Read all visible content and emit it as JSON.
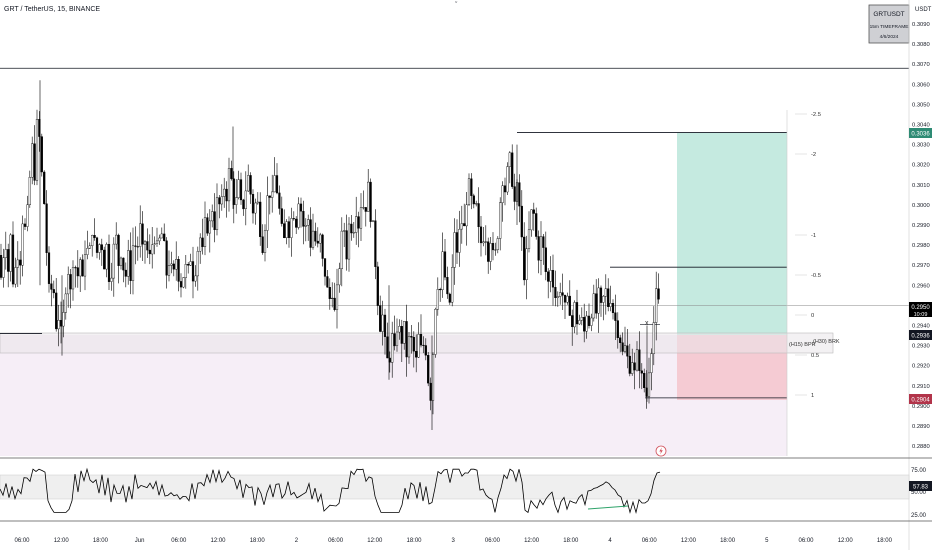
{
  "header": {
    "symbol_title": "GRT / TetherUS, 15, BINANCE"
  },
  "watermark_box": {
    "line1": "GRTUSDT",
    "line2": "15m TIMEFRAME",
    "line3": "4/6/2024"
  },
  "price_axis": {
    "currency": "USDT",
    "ticks": [
      "0.3090",
      "0.3080",
      "0.3070",
      "0.3060",
      "0.3050",
      "0.3040",
      "0.3030",
      "0.3020",
      "0.3010",
      "0.3000",
      "0.2990",
      "0.2980",
      "0.2970",
      "0.2960",
      "0.2950",
      "0.2940",
      "0.2930",
      "0.2920",
      "0.2910",
      "0.2900",
      "0.2890",
      "0.2880"
    ],
    "last_price": {
      "value": "0.2950",
      "countdown": "10:09",
      "color": "#000000"
    },
    "target_label": {
      "value": "0.3036",
      "color": "#2e8b74"
    },
    "entry_label": {
      "value": "0.2936",
      "color": "#131722"
    },
    "stop_label": {
      "value": "0.2904",
      "color": "#b2344a"
    },
    "rsi_ticks": [
      "75.00",
      "50.00",
      "25.00"
    ],
    "rsi_value": {
      "value": "57.83",
      "color": "#131722"
    }
  },
  "time_axis": {
    "labels": [
      "06:00",
      "12:00",
      "18:00",
      "Jun",
      "06:00",
      "12:00",
      "18:00",
      "2",
      "06:00",
      "12:00",
      "18:00",
      "3",
      "06:00",
      "12:00",
      "18:00",
      "4",
      "06:00",
      "12:00",
      "18:00",
      "5",
      "06:00",
      "12:00",
      "18:00"
    ]
  },
  "fib_labels": [
    "-2.5",
    "-2",
    "-1",
    "-0.5",
    "0",
    "0.5",
    "1"
  ],
  "annotations": {
    "x_mark": "x",
    "bpr_label": "(H15) BPR",
    "brk_label": "(H30) BRK"
  },
  "colors": {
    "up_candle": "#000000",
    "down_candle": "#000000",
    "target_zone": "#b2e3d5",
    "stop_zone": "#f5c4cd",
    "pink_zone": "#f6eef7",
    "rsi_band": "#efefef",
    "rsi_line": "#000000",
    "rsi_divergence": "#2ea36a"
  },
  "chart_data": {
    "type": "candlestick",
    "interval": "15m",
    "ylim": [
      0.2875,
      0.31
    ],
    "price_path": [
      [
        0,
        0.2975
      ],
      [
        3,
        0.296
      ],
      [
        6,
        0.299
      ],
      [
        9,
        0.2965
      ],
      [
        12,
        0.2985
      ],
      [
        15,
        0.2955
      ],
      [
        18,
        0.298
      ],
      [
        21,
        0.297
      ],
      [
        24,
        0.2995
      ],
      [
        27,
        0.2985
      ],
      [
        30,
        0.3005
      ],
      [
        33,
        0.303
      ],
      [
        36,
        0.3015
      ],
      [
        39,
        0.3048
      ],
      [
        42,
        0.302
      ],
      [
        45,
        0.3005
      ],
      [
        48,
        0.2975
      ],
      [
        51,
        0.295
      ],
      [
        54,
        0.2965
      ],
      [
        57,
        0.294
      ],
      [
        60,
        0.2945
      ],
      [
        63,
        0.2932
      ],
      [
        66,
        0.2955
      ],
      [
        69,
        0.297
      ],
      [
        72,
        0.2955
      ],
      [
        75,
        0.298
      ],
      [
        78,
        0.296
      ],
      [
        81,
        0.2975
      ],
      [
        84,
        0.296
      ],
      [
        87,
        0.2985
      ],
      [
        90,
        0.297
      ],
      [
        93,
        0.299
      ],
      [
        96,
        0.298
      ],
      [
        99,
        0.2975
      ],
      [
        102,
        0.2985
      ],
      [
        105,
        0.297
      ],
      [
        108,
        0.298
      ],
      [
        111,
        0.296
      ],
      [
        114,
        0.2975
      ],
      [
        117,
        0.2985
      ],
      [
        120,
        0.297
      ],
      [
        123,
        0.298
      ],
      [
        126,
        0.296
      ],
      [
        129,
        0.2975
      ],
      [
        132,
        0.2965
      ],
      [
        135,
        0.2985
      ],
      [
        138,
        0.2975
      ],
      [
        141,
        0.299
      ],
      [
        144,
        0.2975
      ],
      [
        147,
        0.2985
      ],
      [
        150,
        0.297
      ],
      [
        153,
        0.298
      ],
      [
        156,
        0.2985
      ],
      [
        159,
        0.2975
      ],
      [
        162,
        0.2988
      ],
      [
        165,
        0.298
      ],
      [
        168,
        0.2965
      ],
      [
        171,
        0.2975
      ],
      [
        174,
        0.296
      ],
      [
        177,
        0.2975
      ],
      [
        180,
        0.2965
      ],
      [
        183,
        0.296
      ],
      [
        186,
        0.297
      ],
      [
        189,
        0.2965
      ],
      [
        192,
        0.2975
      ],
      [
        195,
        0.2962
      ],
      [
        198,
        0.2975
      ],
      [
        201,
        0.2985
      ],
      [
        204,
        0.2975
      ],
      [
        207,
        0.2995
      ],
      [
        210,
        0.2985
      ],
      [
        213,
        0.3
      ],
      [
        216,
        0.299
      ],
      [
        219,
        0.3005
      ],
      [
        222,
        0.2995
      ],
      [
        225,
        0.301
      ],
      [
        228,
        0.3005
      ],
      [
        231,
        0.302
      ],
      [
        234,
        0.3005
      ],
      [
        237,
        0.3
      ],
      [
        240,
        0.301
      ],
      [
        243,
        0.2995
      ],
      [
        246,
        0.3005
      ],
      [
        249,
        0.3015
      ],
      [
        252,
        0.3005
      ],
      [
        255,
        0.2995
      ],
      [
        258,
        0.3005
      ],
      [
        261,
        0.299
      ],
      [
        264,
        0.298
      ],
      [
        267,
        0.2995
      ],
      [
        270,
        0.301
      ],
      [
        273,
        0.3
      ],
      [
        276,
        0.3015
      ],
      [
        279,
        0.3005
      ],
      [
        282,
        0.299
      ],
      [
        285,
        0.298
      ],
      [
        288,
        0.2995
      ],
      [
        291,
        0.2985
      ],
      [
        294,
        0.3
      ],
      [
        297,
        0.299
      ],
      [
        300,
        0.3005
      ],
      [
        303,
        0.2995
      ],
      [
        306,
        0.2985
      ],
      [
        309,
        0.2995
      ],
      [
        312,
        0.298
      ],
      [
        315,
        0.299
      ],
      [
        318,
        0.2975
      ],
      [
        321,
        0.2985
      ],
      [
        324,
        0.297
      ],
      [
        327,
        0.2965
      ],
      [
        330,
        0.295
      ],
      [
        333,
        0.296
      ],
      [
        336,
        0.2945
      ],
      [
        339,
        0.296
      ],
      [
        342,
        0.298
      ],
      [
        345,
        0.299
      ],
      [
        348,
        0.2975
      ],
      [
        351,
        0.2995
      ],
      [
        354,
        0.2985
      ],
      [
        357,
        0.3
      ],
      [
        360,
        0.299
      ],
      [
        363,
        0.3005
      ],
      [
        366,
        0.2995
      ],
      [
        369,
        0.301
      ],
      [
        372,
        0.2995
      ],
      [
        375,
        0.2985
      ],
      [
        378,
        0.296
      ],
      [
        381,
        0.294
      ],
      [
        384,
        0.2945
      ],
      [
        387,
        0.2925
      ],
      [
        390,
        0.292
      ],
      [
        393,
        0.2935
      ],
      [
        396,
        0.2925
      ],
      [
        399,
        0.2945
      ],
      [
        402,
        0.293
      ],
      [
        405,
        0.294
      ],
      [
        408,
        0.2925
      ],
      [
        411,
        0.2935
      ],
      [
        414,
        0.293
      ],
      [
        417,
        0.292
      ],
      [
        420,
        0.2935
      ],
      [
        423,
        0.2925
      ],
      [
        426,
        0.2935
      ],
      [
        429,
        0.2915
      ],
      [
        432,
        0.2905
      ],
      [
        435,
        0.2935
      ],
      [
        438,
        0.2965
      ],
      [
        441,
        0.2955
      ],
      [
        444,
        0.2975
      ],
      [
        447,
        0.296
      ],
      [
        450,
        0.2945
      ],
      [
        453,
        0.2965
      ],
      [
        456,
        0.2985
      ],
      [
        459,
        0.2975
      ],
      [
        462,
        0.2995
      ],
      [
        465,
        0.2985
      ],
      [
        468,
        0.3005
      ],
      [
        471,
        0.301
      ],
      [
        474,
        0.2995
      ],
      [
        477,
        0.3
      ],
      [
        480,
        0.2985
      ],
      [
        483,
        0.298
      ],
      [
        486,
        0.299
      ],
      [
        489,
        0.2975
      ],
      [
        492,
        0.2985
      ],
      [
        495,
        0.297
      ],
      [
        498,
        0.298
      ],
      [
        501,
        0.3
      ],
      [
        504,
        0.3015
      ],
      [
        507,
        0.3005
      ],
      [
        510,
        0.3025
      ],
      [
        513,
        0.3015
      ],
      [
        516,
        0.3
      ],
      [
        519,
        0.301
      ],
      [
        522,
        0.299
      ],
      [
        525,
        0.2965
      ],
      [
        528,
        0.2975
      ],
      [
        531,
        0.299
      ],
      [
        534,
        0.3
      ],
      [
        537,
        0.2985
      ],
      [
        540,
        0.2975
      ],
      [
        543,
        0.2985
      ],
      [
        546,
        0.297
      ],
      [
        549,
        0.296
      ],
      [
        552,
        0.297
      ],
      [
        555,
        0.296
      ],
      [
        558,
        0.295
      ],
      [
        561,
        0.296
      ],
      [
        564,
        0.2955
      ],
      [
        567,
        0.2945
      ],
      [
        570,
        0.2955
      ],
      [
        573,
        0.2938
      ],
      [
        576,
        0.295
      ],
      [
        579,
        0.294
      ],
      [
        582,
        0.2945
      ],
      [
        585,
        0.2935
      ],
      [
        588,
        0.2948
      ],
      [
        591,
        0.294
      ],
      [
        594,
        0.2955
      ],
      [
        597,
        0.2945
      ],
      [
        600,
        0.2955
      ],
      [
        603,
        0.2945
      ],
      [
        606,
        0.296
      ],
      [
        609,
        0.295
      ],
      [
        612,
        0.2955
      ],
      [
        615,
        0.2945
      ],
      [
        618,
        0.294
      ],
      [
        621,
        0.2935
      ],
      [
        624,
        0.2925
      ],
      [
        627,
        0.293
      ],
      [
        630,
        0.2918
      ],
      [
        633,
        0.2925
      ],
      [
        636,
        0.2915
      ],
      [
        639,
        0.2928
      ],
      [
        642,
        0.2915
      ],
      [
        645,
        0.291
      ],
      [
        648,
        0.2905
      ],
      [
        651,
        0.2925
      ],
      [
        654,
        0.2935
      ],
      [
        657,
        0.2955
      ],
      [
        660,
        0.295
      ]
    ],
    "rsi_ylim": [
      15,
      85
    ],
    "rsi_levels": {
      "upper": 70,
      "lower": 30
    },
    "levels": {
      "top_line": 0.3068,
      "target": 0.3036,
      "fib_0_5_top": 0.2969,
      "last_price": 0.295,
      "entry": 0.2936,
      "stop": 0.2904,
      "left_level": 0.2936
    }
  }
}
